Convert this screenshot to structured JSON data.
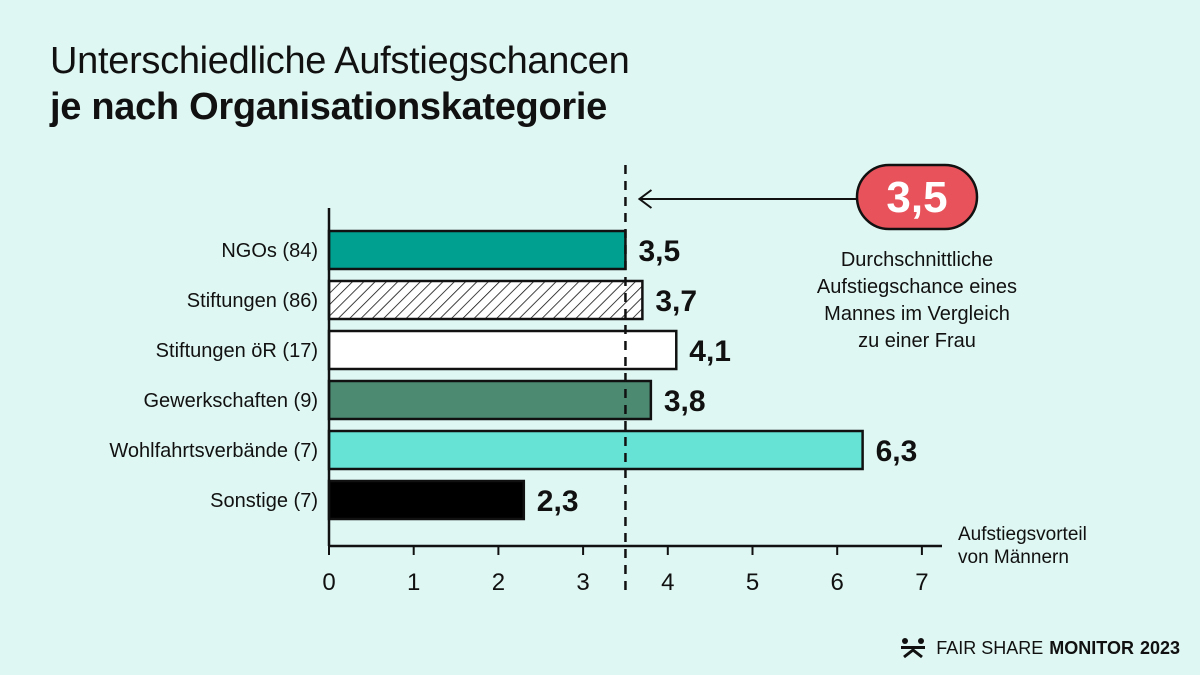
{
  "title_line1": "Unterschiedliche Aufstiegschancen",
  "title_line2": "je nach Organisationskategorie",
  "callout": {
    "value": "3,5",
    "lines": [
      "Durchschnittliche",
      "Aufstiegschance eines",
      "Mannes im Vergleich",
      "zu einer Frau"
    ],
    "badge_color": "#e8525a"
  },
  "footer": {
    "brand_light": "FAIR SHARE",
    "brand_bold": "MONITOR",
    "year": "2023"
  },
  "chart_data": {
    "type": "bar",
    "orientation": "horizontal",
    "categories": [
      "NGOs (84)",
      "Stiftungen (86)",
      "Stiftungen öR (17)",
      "Gewerkschaften (9)",
      "Wohlfahrtsverbände (7)",
      "Sonstige (7)"
    ],
    "values": [
      3.5,
      3.7,
      4.1,
      3.8,
      6.3,
      2.3
    ],
    "value_labels": [
      "3,5",
      "3,7",
      "4,1",
      "3,8",
      "6,3",
      "2,3"
    ],
    "bar_colors": [
      "#00a090",
      "hatched",
      "#ffffff",
      "#4c8a72",
      "#66e3d5",
      "#000000"
    ],
    "xlabel_lines": [
      "Aufstiegsvorteil",
      "von Männern"
    ],
    "xlim": [
      0,
      7
    ],
    "xticks": [
      "0",
      "1",
      "2",
      "3",
      "4",
      "5",
      "6",
      "7"
    ],
    "reference_line": {
      "value": 3.5,
      "style": "dashed"
    },
    "grid": false
  }
}
